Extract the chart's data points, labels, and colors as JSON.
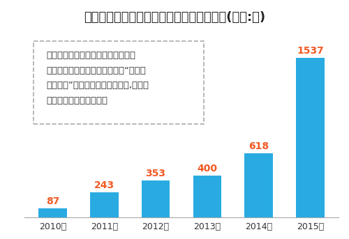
{
  "title": "国家电网电动汽车集中式充换电站建设一览(单位:座)",
  "categories": [
    "2010年",
    "2011年",
    "2012年",
    "2013年",
    "2014年",
    "2015年"
  ],
  "values": [
    87,
    243,
    353,
    400,
    618,
    1537
  ],
  "bar_color": "#29ABE2",
  "value_color": "#F15A24",
  "title_bg_color": "#D4D4D4",
  "bg_color": "#FFFFFF",
  "annotation_lines": [
    "国家电网将在两纵两横一环高速公路",
    "城际快速网络的基础上加速建设“七纵四",
    "横两网格”高速公路快速充电网络,用以保",
    "障电动汽车的快速发展。"
  ],
  "title_fontsize": 13,
  "label_fontsize": 9,
  "value_fontsize": 10,
  "annotation_fontsize": 9.5,
  "ylim": [
    0,
    1700
  ]
}
